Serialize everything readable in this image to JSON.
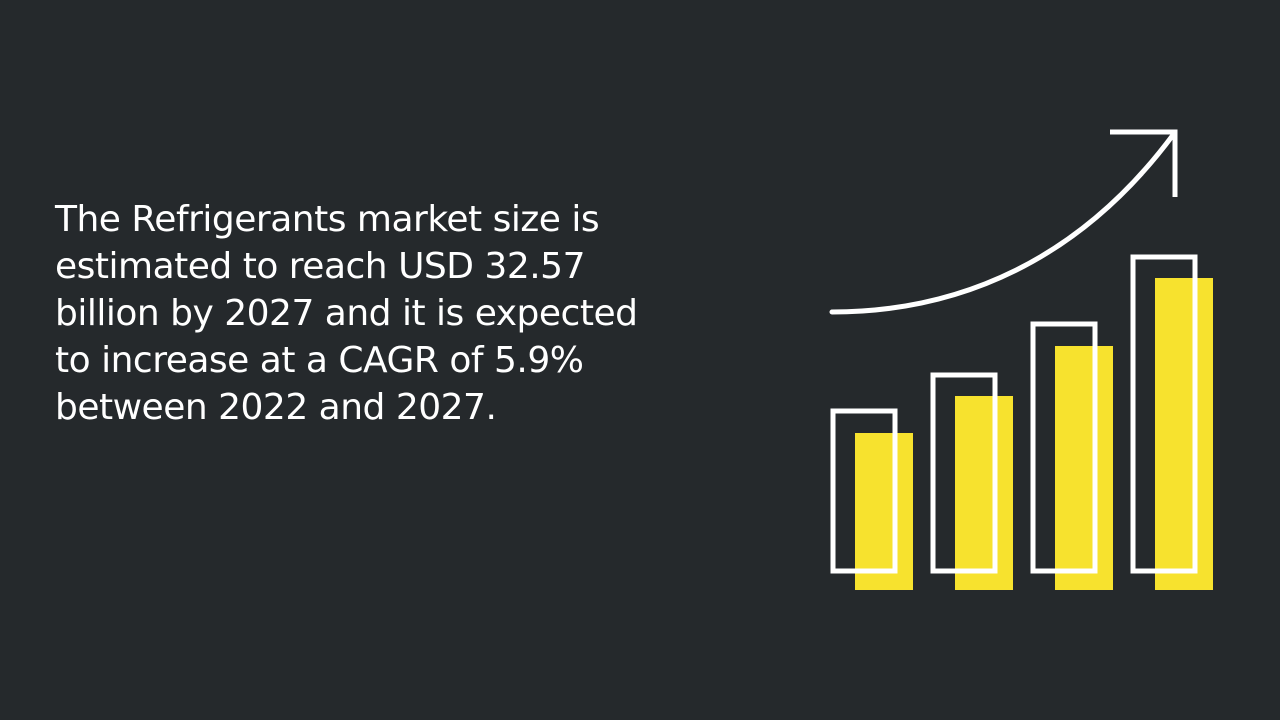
{
  "text": {
    "lines": [
      "The Refrigerants market size is",
      "estimated to reach USD 32.57",
      "billion by 2027 and it is expected",
      "to increase at a CAGR of 5.9%",
      "between 2022 and 2027."
    ]
  }
}
